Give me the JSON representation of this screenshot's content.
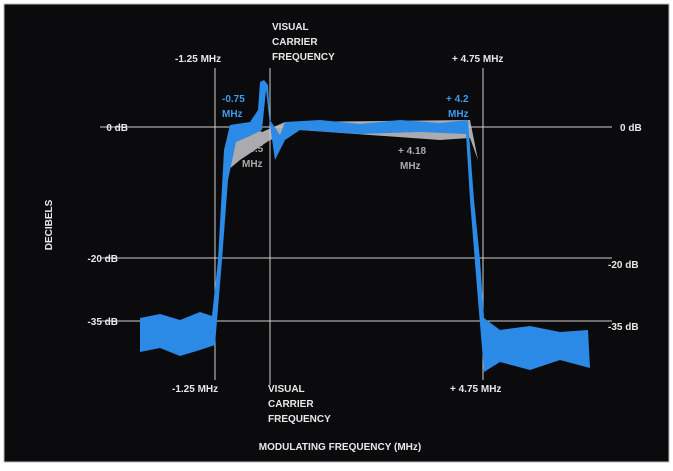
{
  "axis_labels": {
    "y": "DECIBELS",
    "x": "MODULATING FREQUENCY (MHz)"
  },
  "levels": {
    "zero": "0 dB",
    "minus20": "-20 dB",
    "minus35": "-35 dB"
  },
  "top_markers": {
    "left": "-1.25 MHz",
    "carrier": [
      "VISUAL",
      "CARRIER",
      "FREQUENCY"
    ],
    "right": "+ 4.75 MHz"
  },
  "bottom_markers": {
    "left": "-1.25 MHz",
    "carrier": [
      "VISUAL",
      "CARRIER",
      "FREQUENCY"
    ],
    "right": "+ 4.75 MHz"
  },
  "annotations": {
    "minus075": [
      "-0.75",
      "MHz"
    ],
    "minus05": [
      "-0.5",
      "MHz"
    ],
    "plus418": [
      "+ 4.18",
      "MHz"
    ],
    "plus42": [
      "+ 4.2",
      "MHz"
    ]
  }
}
